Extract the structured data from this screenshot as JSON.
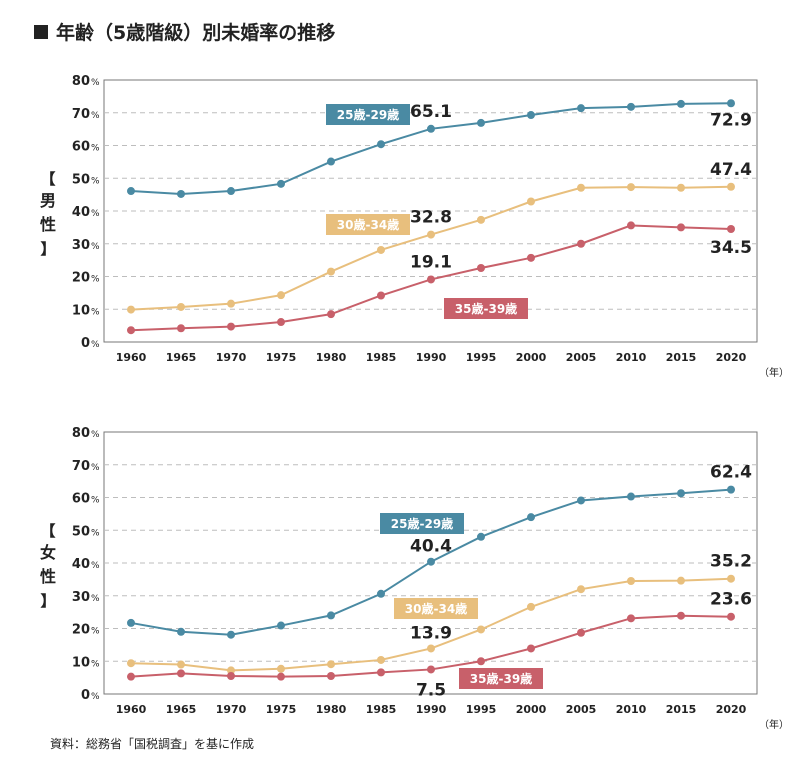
{
  "title": "年齢（5歳階級）別未婚率の推移",
  "source": "資料：総務省「国税調査」を基に作成",
  "colors": {
    "teal": "#4a8aa3",
    "tan": "#e8bf7d",
    "red": "#c8606a",
    "grid": "#bdbdbd",
    "frame": "#777777"
  },
  "chart_data": [
    {
      "type": "line",
      "group_label": "男性",
      "x": [
        "1960",
        "1965",
        "1970",
        "1975",
        "1980",
        "1985",
        "1990",
        "1995",
        "2000",
        "2005",
        "2010",
        "2015",
        "2020"
      ],
      "xunit": "（年）",
      "ylim": [
        0,
        80
      ],
      "yticks": [
        "0",
        "10",
        "20",
        "30",
        "40",
        "50",
        "60",
        "70",
        "80"
      ],
      "yunit": "%",
      "grid": true,
      "series": [
        {
          "name": "25歳-29歳",
          "color": "#4a8aa3",
          "values": [
            46.1,
            45.2,
            46.1,
            48.3,
            55.1,
            60.4,
            65.1,
            66.9,
            69.3,
            71.4,
            71.8,
            72.7,
            72.9
          ]
        },
        {
          "name": "30歳-34歳",
          "color": "#e8bf7d",
          "values": [
            9.9,
            10.7,
            11.7,
            14.3,
            21.5,
            28.1,
            32.8,
            37.3,
            42.9,
            47.1,
            47.3,
            47.1,
            47.4
          ]
        },
        {
          "name": "35歳-39歳",
          "color": "#c8606a",
          "values": [
            3.6,
            4.2,
            4.7,
            6.1,
            8.5,
            14.2,
            19.1,
            22.6,
            25.7,
            30.0,
            35.6,
            35.0,
            34.5
          ]
        }
      ],
      "annotations": [
        {
          "text": "65.1",
          "series": 0,
          "index": 6
        },
        {
          "text": "72.9",
          "series": 0,
          "index": 12
        },
        {
          "text": "32.8",
          "series": 1,
          "index": 6
        },
        {
          "text": "47.4",
          "series": 1,
          "index": 12
        },
        {
          "text": "19.1",
          "series": 2,
          "index": 6
        },
        {
          "text": "34.5",
          "series": 2,
          "index": 12
        }
      ]
    },
    {
      "type": "line",
      "group_label": "女性",
      "x": [
        "1960",
        "1965",
        "1970",
        "1975",
        "1980",
        "1985",
        "1990",
        "1995",
        "2000",
        "2005",
        "2010",
        "2015",
        "2020"
      ],
      "xunit": "（年）",
      "ylim": [
        0,
        80
      ],
      "yticks": [
        "0",
        "10",
        "20",
        "30",
        "40",
        "50",
        "60",
        "70",
        "80"
      ],
      "yunit": "%",
      "grid": true,
      "series": [
        {
          "name": "25歳-29歳",
          "color": "#4a8aa3",
          "values": [
            21.7,
            19.0,
            18.1,
            20.9,
            24.0,
            30.6,
            40.4,
            48.0,
            54.0,
            59.1,
            60.3,
            61.3,
            62.4
          ]
        },
        {
          "name": "30歳-34歳",
          "color": "#e8bf7d",
          "values": [
            9.4,
            9.0,
            7.2,
            7.7,
            9.1,
            10.4,
            13.9,
            19.7,
            26.6,
            32.0,
            34.5,
            34.6,
            35.2
          ]
        },
        {
          "name": "35歳-39歳",
          "color": "#c8606a",
          "values": [
            5.3,
            6.3,
            5.5,
            5.3,
            5.5,
            6.6,
            7.5,
            10.0,
            13.9,
            18.7,
            23.1,
            23.9,
            23.6
          ]
        }
      ],
      "annotations": [
        {
          "text": "40.4",
          "series": 0,
          "index": 6
        },
        {
          "text": "62.4",
          "series": 0,
          "index": 12
        },
        {
          "text": "13.9",
          "series": 1,
          "index": 6
        },
        {
          "text": "35.2",
          "series": 1,
          "index": 12
        },
        {
          "text": "7.5",
          "series": 2,
          "index": 6
        },
        {
          "text": "23.6",
          "series": 2,
          "index": 12
        }
      ]
    }
  ]
}
